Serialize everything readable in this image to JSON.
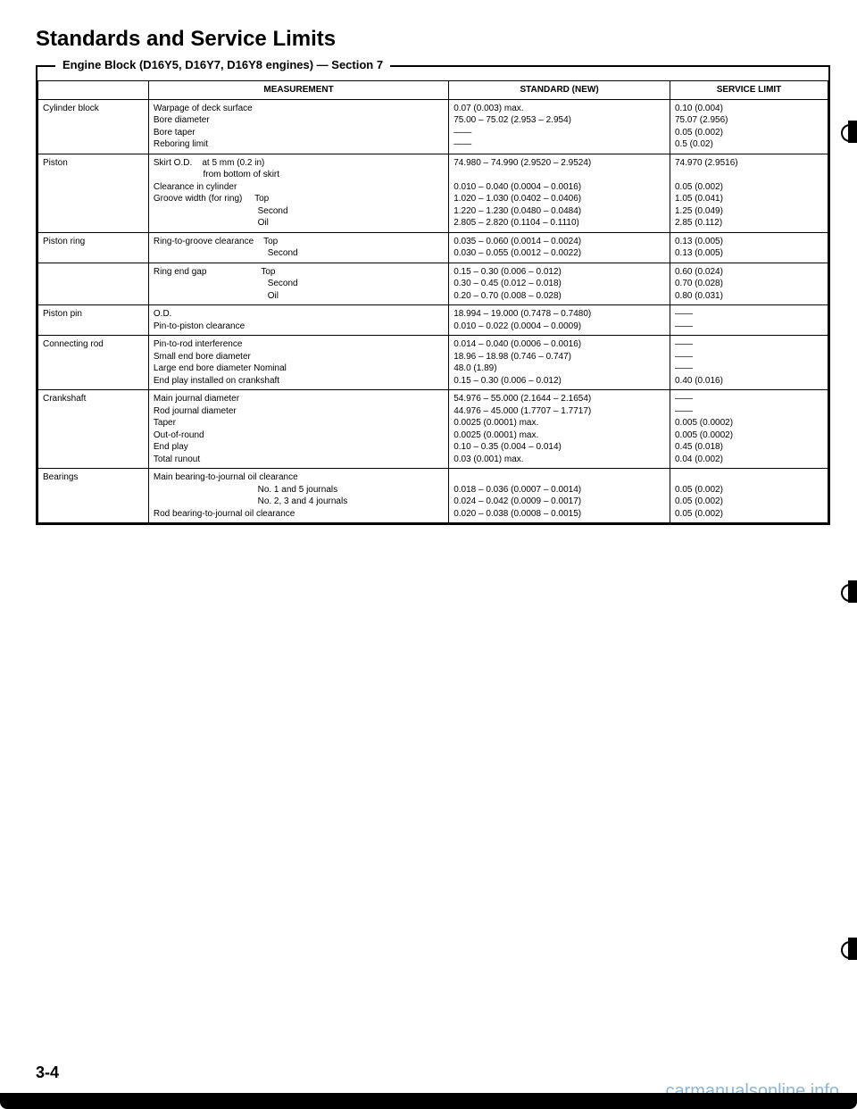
{
  "title": "Standards and Service Limits",
  "boxLabel": "Engine Block (D16Y5, D16Y7, D16Y8 engines) — Section 7",
  "headers": [
    "",
    "MEASUREMENT",
    "STANDARD (NEW)",
    "SERVICE LIMIT"
  ],
  "pageNumber": "3-4",
  "watermark": "carmanualsonline.info",
  "rows": [
    {
      "component": "Cylinder block",
      "measurement": "Warpage of deck surface\nBore diameter\nBore taper\nReboring limit",
      "standard": "0.07 (0.003) max.\n75.00 – 75.02 (2.953 – 2.954)\n——\n——",
      "limit": "0.10 (0.004)\n75.07 (2.956)\n0.05 (0.002)\n0.5 (0.02)"
    },
    {
      "component": "Piston",
      "measurement": "Skirt O.D.    at 5 mm (0.2 in)\n                    from bottom of skirt\nClearance in cylinder\nGroove width (for ring)     Top\n                                          Second\n                                          Oil",
      "standard": "74.980 – 74.990 (2.9520 – 2.9524)\n\n0.010 – 0.040 (0.0004 – 0.0016)\n1.020 – 1.030 (0.0402 – 0.0406)\n1.220 – 1.230 (0.0480 – 0.0484)\n2.805 – 2.820 (0.1104 – 0.1110)",
      "limit": "74.970 (2.9516)\n\n0.05 (0.002)\n1.05 (0.041)\n1.25 (0.049)\n2.85 (0.112)"
    },
    {
      "component": "Piston ring",
      "measurement": "Ring-to-groove clearance    Top\n                                              Second",
      "standard": "0.035 – 0.060 (0.0014 – 0.0024)\n0.030 – 0.055 (0.0012 – 0.0022)",
      "limit": "0.13 (0.005)\n0.13 (0.005)"
    },
    {
      "component": "",
      "measurement": "Ring end gap                      Top\n                                              Second\n                                              Oil",
      "standard": "0.15 – 0.30 (0.006 – 0.012)\n0.30 – 0.45 (0.012 – 0.018)\n0.20 – 0.70 (0.008 – 0.028)",
      "limit": "0.60 (0.024)\n0.70 (0.028)\n0.80 (0.031)"
    },
    {
      "component": "Piston pin",
      "measurement": "O.D.\nPin-to-piston clearance",
      "standard": "18.994 – 19.000 (0.7478 – 0.7480)\n0.010 – 0.022 (0.0004 – 0.0009)",
      "limit": "——\n——"
    },
    {
      "component": "Connecting rod",
      "measurement": "Pin-to-rod interference\nSmall end bore diameter\nLarge end bore diameter Nominal\nEnd play installed on crankshaft",
      "standard": "0.014 – 0.040 (0.0006 – 0.0016)\n18.96 – 18.98 (0.746 – 0.747)\n48.0 (1.89)\n0.15 – 0.30 (0.006 – 0.012)",
      "limit": "——\n——\n——\n0.40 (0.016)"
    },
    {
      "component": "Crankshaft",
      "measurement": "Main journal diameter\nRod journal diameter\nTaper\nOut-of-round\nEnd play\nTotal runout",
      "standard": "54.976 – 55.000 (2.1644 – 2.1654)\n44.976 – 45.000 (1.7707 – 1.7717)\n0.0025 (0.0001) max.\n0.0025 (0.0001) max.\n0.10 – 0.35 (0.004 – 0.014)\n0.03 (0.001) max.",
      "limit": "——\n——\n0.005 (0.0002)\n0.005 (0.0002)\n0.45 (0.018)\n0.04 (0.002)"
    },
    {
      "component": "Bearings",
      "measurement": "Main bearing-to-journal oil clearance\n                                          No. 1 and 5 journals\n                                          No. 2, 3 and 4 journals\nRod bearing-to-journal oil clearance",
      "standard": "\n0.018 – 0.036 (0.0007 – 0.0014)\n0.024 – 0.042 (0.0009 – 0.0017)\n0.020 – 0.038 (0.0008 – 0.0015)",
      "limit": "\n0.05 (0.002)\n0.05 (0.002)\n0.05 (0.002)"
    }
  ]
}
